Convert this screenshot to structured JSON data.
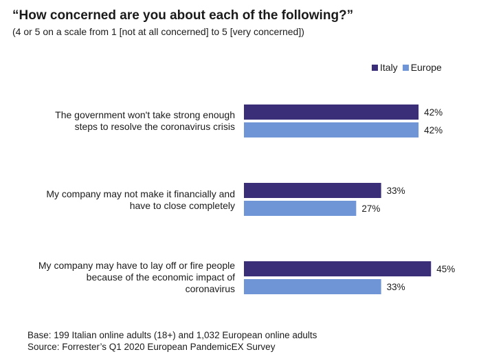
{
  "colors": {
    "italy": "#3a2e78",
    "europe": "#6f95d6"
  },
  "chart_data": {
    "type": "bar",
    "orientation": "horizontal",
    "title": "“How concerned are you about each of the following?”",
    "subtitle": "(4 or 5 on a scale from 1 [not at all concerned] to 5 [very concerned])",
    "categories": [
      [
        "The government won't take strong enough",
        "steps to resolve the coronavirus crisis"
      ],
      [
        "My company may not make it financially and",
        "have to close completely"
      ],
      [
        "My company may have to lay off or fire people",
        "because of the economic impact of",
        "coronavirus"
      ]
    ],
    "series": [
      {
        "name": "Italy",
        "values": [
          42,
          33,
          45
        ],
        "labels": [
          "42%",
          "33%",
          "45%"
        ]
      },
      {
        "name": "Europe",
        "values": [
          42,
          27,
          33
        ],
        "labels": [
          "42%",
          "27%",
          "33%"
        ]
      }
    ],
    "xlim": [
      0,
      45
    ],
    "legend_position": "top-right",
    "grid": false
  },
  "footer": {
    "base": "Base: 199 Italian online adults (18+) and 1,032 European online adults",
    "source": "Source: Forrester’s Q1 2020 European PandemicEX Survey"
  }
}
